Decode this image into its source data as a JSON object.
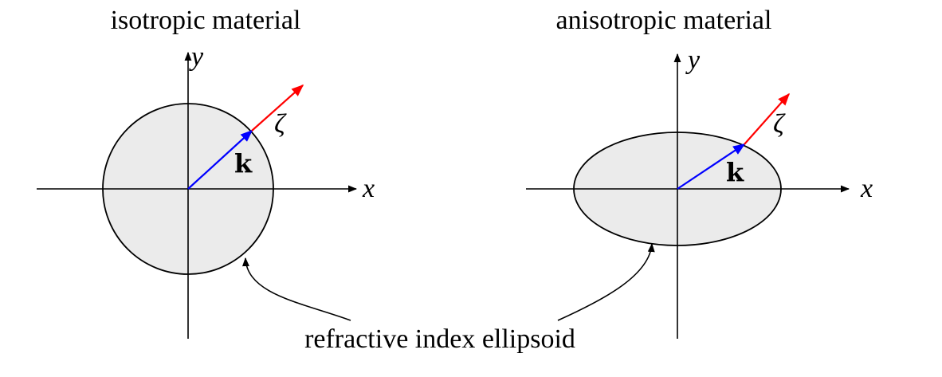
{
  "panels": [
    {
      "title": "isotropic material",
      "x_label": "x",
      "y_label": "y",
      "k_label": "k",
      "zeta_label": "ζ"
    },
    {
      "title": "anisotropic material",
      "x_label": "x",
      "y_label": "y",
      "k_label": "k",
      "zeta_label": "ζ"
    }
  ],
  "annotation": "refractive index ellipsoid",
  "colors": {
    "fill": "#ebebeb",
    "k_vector": "#0000ff",
    "zeta_vector": "#ff0000",
    "stroke": "#000000"
  }
}
